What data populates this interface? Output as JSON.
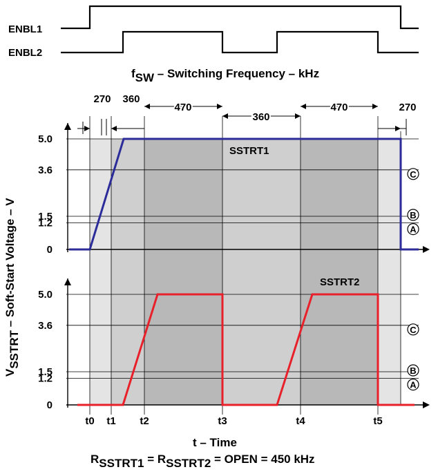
{
  "enable_signals": [
    {
      "name": "ENBL1",
      "x": [
        0,
        0.85,
        0.85,
        4.6,
        4.6,
        5.3
      ]
    },
    {
      "name": "ENBL2",
      "x": [
        0,
        1.45,
        1.45,
        3.0,
        3.0,
        3.65,
        3.65,
        5.1,
        5.1,
        5.3
      ]
    }
  ],
  "freq_header": {
    "title_main": "f",
    "title_sub": "SW",
    "title_rest": " – Switching Frequency – kHz",
    "segments": [
      "270",
      "360",
      "470",
      "360",
      "470",
      "270"
    ]
  },
  "y_axis_label": {
    "main": "V",
    "sub": "SSTRT",
    "rest": " – Soft-Start Voltage – V"
  },
  "y_ticks": [
    "5.0",
    "3.6",
    "1.5",
    "1.2",
    "0"
  ],
  "level_markers": [
    "C",
    "B",
    "A"
  ],
  "time_ticks": [
    "t0",
    "t1",
    "t2",
    "t3",
    "t4",
    "t5"
  ],
  "x_axis_label": "t – Time",
  "footer": {
    "r1_main": "R",
    "r1_sub": "SSTRT1",
    "mid": " = ",
    "r2_main": "R",
    "r2_sub": "SSTRT2",
    "rest": " = OPEN = 450 kHz"
  },
  "chart_data": [
    {
      "type": "line",
      "title": "SSTRT1",
      "series": [
        {
          "name": "SSTRT1",
          "color": "#2b2b9a",
          "x": [
            0,
            0.3,
            1.0,
            5.3
          ],
          "y": [
            0,
            0,
            5.0,
            5.0
          ]
        }
      ],
      "ylim": [
        0,
        5.0
      ]
    },
    {
      "type": "line",
      "title": "SSTRT2",
      "series": [
        {
          "name": "SSTRT2",
          "color": "#e8202a",
          "x": [
            0,
            1.45,
            2.15,
            3.0,
            3.0,
            3.65,
            4.35,
            5.1,
            5.1,
            5.3
          ],
          "y": [
            0,
            0,
            5.0,
            5.0,
            0,
            0,
            5.0,
            5.0,
            0,
            0
          ]
        }
      ],
      "ylim": [
        0,
        5.0
      ]
    }
  ]
}
